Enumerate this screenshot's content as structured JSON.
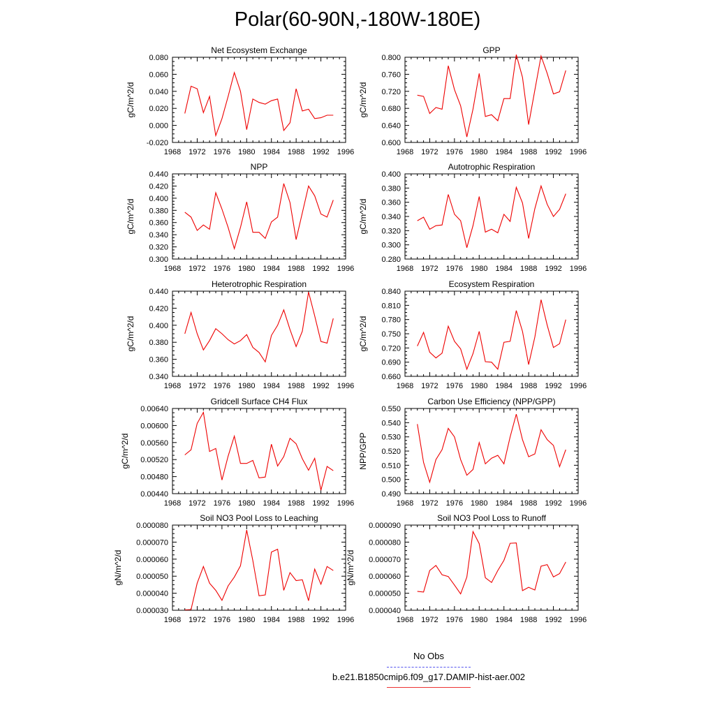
{
  "page": {
    "title": "Polar(60-90N,-180W-180E)"
  },
  "legend": {
    "items": [
      {
        "label": "No Obs",
        "color": "#5555ee",
        "style": "dashed"
      },
      {
        "label": "b.e21.B1850cmip6.f09_g17.DAMIP-hist-aer.002",
        "color": "#ee3333",
        "style": "solid"
      }
    ]
  },
  "chart_data": [
    {
      "type": "line",
      "title": "Net Ecosystem Exchange",
      "ylabel": "gC/m^2/d",
      "xlim": [
        1968,
        1996
      ],
      "ylim": [
        -0.02,
        0.08
      ],
      "xticks": [
        1968,
        1972,
        1976,
        1980,
        1984,
        1988,
        1992,
        1996
      ],
      "yticks": [
        -0.02,
        0.0,
        0.02,
        0.04,
        0.06,
        0.08
      ],
      "ydecimals": 3,
      "line_color": "#ee0000",
      "x": [
        1970,
        1971,
        1972,
        1973,
        1974,
        1975,
        1976,
        1977,
        1978,
        1979,
        1980,
        1981,
        1982,
        1983,
        1984,
        1985,
        1986,
        1987,
        1988,
        1989,
        1990,
        1991,
        1992,
        1993,
        1994
      ],
      "y": [
        0.014,
        0.046,
        0.043,
        0.015,
        0.034,
        -0.012,
        0.008,
        0.034,
        0.062,
        0.04,
        -0.005,
        0.031,
        0.027,
        0.025,
        0.029,
        0.031,
        -0.006,
        0.003,
        0.043,
        0.017,
        0.019,
        0.008,
        0.009,
        0.012,
        0.012
      ]
    },
    {
      "type": "line",
      "title": "GPP",
      "ylabel": "gC/m^2/d",
      "xlim": [
        1968,
        1996
      ],
      "ylim": [
        0.6,
        0.8
      ],
      "xticks": [
        1968,
        1972,
        1976,
        1980,
        1984,
        1988,
        1992,
        1996
      ],
      "yticks": [
        0.6,
        0.64,
        0.68,
        0.72,
        0.76,
        0.8
      ],
      "ydecimals": 3,
      "line_color": "#ee0000",
      "x": [
        1970,
        1971,
        1972,
        1973,
        1974,
        1975,
        1976,
        1977,
        1978,
        1979,
        1980,
        1981,
        1982,
        1983,
        1984,
        1985,
        1986,
        1987,
        1988,
        1989,
        1990,
        1991,
        1992,
        1993,
        1994
      ],
      "y": [
        0.711,
        0.708,
        0.668,
        0.682,
        0.678,
        0.78,
        0.724,
        0.686,
        0.613,
        0.678,
        0.762,
        0.661,
        0.665,
        0.651,
        0.703,
        0.703,
        0.806,
        0.753,
        0.642,
        0.723,
        0.803,
        0.762,
        0.714,
        0.719,
        0.769
      ]
    },
    {
      "type": "line",
      "title": "NPP",
      "ylabel": "gC/m^2/d",
      "xlim": [
        1968,
        1996
      ],
      "ylim": [
        0.3,
        0.44
      ],
      "xticks": [
        1968,
        1972,
        1976,
        1980,
        1984,
        1988,
        1992,
        1996
      ],
      "yticks": [
        0.3,
        0.32,
        0.34,
        0.36,
        0.38,
        0.4,
        0.42,
        0.44
      ],
      "ydecimals": 3,
      "line_color": "#ee0000",
      "x": [
        1970,
        1971,
        1972,
        1973,
        1974,
        1975,
        1976,
        1977,
        1978,
        1979,
        1980,
        1981,
        1982,
        1983,
        1984,
        1985,
        1986,
        1987,
        1988,
        1989,
        1990,
        1991,
        1992,
        1993,
        1994
      ],
      "y": [
        0.377,
        0.369,
        0.347,
        0.356,
        0.349,
        0.409,
        0.382,
        0.352,
        0.317,
        0.352,
        0.394,
        0.344,
        0.344,
        0.334,
        0.361,
        0.369,
        0.424,
        0.393,
        0.332,
        0.376,
        0.42,
        0.404,
        0.374,
        0.369,
        0.397
      ]
    },
    {
      "type": "line",
      "title": "Autotrophic Respiration",
      "ylabel": "gC/m^2/d",
      "xlim": [
        1968,
        1996
      ],
      "ylim": [
        0.28,
        0.4
      ],
      "xticks": [
        1968,
        1972,
        1976,
        1980,
        1984,
        1988,
        1992,
        1996
      ],
      "yticks": [
        0.28,
        0.3,
        0.32,
        0.34,
        0.36,
        0.38,
        0.4
      ],
      "ydecimals": 3,
      "line_color": "#ee0000",
      "x": [
        1970,
        1971,
        1972,
        1973,
        1974,
        1975,
        1976,
        1977,
        1978,
        1979,
        1980,
        1981,
        1982,
        1983,
        1984,
        1985,
        1986,
        1987,
        1988,
        1989,
        1990,
        1991,
        1992,
        1993,
        1994
      ],
      "y": [
        0.334,
        0.339,
        0.322,
        0.327,
        0.328,
        0.371,
        0.343,
        0.334,
        0.296,
        0.327,
        0.368,
        0.318,
        0.322,
        0.317,
        0.343,
        0.333,
        0.381,
        0.359,
        0.309,
        0.351,
        0.383,
        0.357,
        0.34,
        0.35,
        0.372
      ]
    },
    {
      "type": "line",
      "title": "Heterotrophic Respiration",
      "ylabel": "gC/m^2/d",
      "xlim": [
        1968,
        1996
      ],
      "ylim": [
        0.34,
        0.44
      ],
      "xticks": [
        1968,
        1972,
        1976,
        1980,
        1984,
        1988,
        1992,
        1996
      ],
      "yticks": [
        0.34,
        0.36,
        0.38,
        0.4,
        0.42,
        0.44
      ],
      "ydecimals": 3,
      "line_color": "#ee0000",
      "x": [
        1970,
        1971,
        1972,
        1973,
        1974,
        1975,
        1976,
        1977,
        1978,
        1979,
        1980,
        1981,
        1982,
        1983,
        1984,
        1985,
        1986,
        1987,
        1988,
        1989,
        1990,
        1991,
        1992,
        1993,
        1994
      ],
      "y": [
        0.39,
        0.415,
        0.39,
        0.371,
        0.382,
        0.396,
        0.39,
        0.383,
        0.378,
        0.382,
        0.389,
        0.374,
        0.368,
        0.357,
        0.388,
        0.4,
        0.418,
        0.395,
        0.375,
        0.393,
        0.439,
        0.411,
        0.381,
        0.379,
        0.408
      ]
    },
    {
      "type": "line",
      "title": "Ecosystem Respiration",
      "ylabel": "gC/m^2/d",
      "xlim": [
        1968,
        1996
      ],
      "ylim": [
        0.66,
        0.84
      ],
      "xticks": [
        1968,
        1972,
        1976,
        1980,
        1984,
        1988,
        1992,
        1996
      ],
      "yticks": [
        0.66,
        0.69,
        0.72,
        0.75,
        0.78,
        0.81,
        0.84
      ],
      "ydecimals": 3,
      "line_color": "#ee0000",
      "x": [
        1970,
        1971,
        1972,
        1973,
        1974,
        1975,
        1976,
        1977,
        1978,
        1979,
        1980,
        1981,
        1982,
        1983,
        1984,
        1985,
        1986,
        1987,
        1988,
        1989,
        1990,
        1991,
        1992,
        1993,
        1994
      ],
      "y": [
        0.724,
        0.753,
        0.711,
        0.699,
        0.709,
        0.766,
        0.734,
        0.718,
        0.675,
        0.708,
        0.755,
        0.691,
        0.69,
        0.675,
        0.732,
        0.734,
        0.799,
        0.755,
        0.685,
        0.743,
        0.822,
        0.768,
        0.721,
        0.729,
        0.78
      ]
    },
    {
      "type": "line",
      "title": "Gridcell Surface CH4 Flux",
      "ylabel": "gC/m^2/d",
      "xlim": [
        1968,
        1996
      ],
      "ylim": [
        0.0044,
        0.0064
      ],
      "xticks": [
        1968,
        1972,
        1976,
        1980,
        1984,
        1988,
        1992,
        1996
      ],
      "yticks": [
        0.0044,
        0.0048,
        0.0052,
        0.0056,
        0.006,
        0.0064
      ],
      "ydecimals": 5,
      "line_color": "#ee0000",
      "x": [
        1970,
        1971,
        1972,
        1973,
        1974,
        1975,
        1976,
        1977,
        1978,
        1979,
        1980,
        1981,
        1982,
        1983,
        1984,
        1985,
        1986,
        1987,
        1988,
        1989,
        1990,
        1991,
        1992,
        1993,
        1994
      ],
      "y": [
        0.00531,
        0.00543,
        0.00605,
        0.00631,
        0.00539,
        0.00546,
        0.00472,
        0.00528,
        0.00575,
        0.00511,
        0.00511,
        0.00518,
        0.00477,
        0.00479,
        0.00556,
        0.00505,
        0.00527,
        0.0057,
        0.00557,
        0.00522,
        0.00495,
        0.00523,
        0.00448,
        0.00504,
        0.00494
      ]
    },
    {
      "type": "line",
      "title": "Carbon Use Efficiency (NPP/GPP)",
      "ylabel": "NPP/GPP",
      "xlim": [
        1968,
        1996
      ],
      "ylim": [
        0.49,
        0.55
      ],
      "xticks": [
        1968,
        1972,
        1976,
        1980,
        1984,
        1988,
        1992,
        1996
      ],
      "yticks": [
        0.49,
        0.5,
        0.51,
        0.52,
        0.53,
        0.54,
        0.55
      ],
      "ydecimals": 3,
      "line_color": "#ee0000",
      "x": [
        1970,
        1971,
        1972,
        1973,
        1974,
        1975,
        1976,
        1977,
        1978,
        1979,
        1980,
        1981,
        1982,
        1983,
        1984,
        1985,
        1986,
        1987,
        1988,
        1989,
        1990,
        1991,
        1992,
        1993,
        1994
      ],
      "y": [
        0.539,
        0.512,
        0.498,
        0.514,
        0.521,
        0.536,
        0.53,
        0.514,
        0.503,
        0.507,
        0.526,
        0.511,
        0.515,
        0.517,
        0.511,
        0.53,
        0.546,
        0.528,
        0.516,
        0.518,
        0.535,
        0.528,
        0.524,
        0.509,
        0.521
      ]
    },
    {
      "type": "line",
      "title": "Soil NO3 Pool Loss to Leaching",
      "ylabel": "gN/m^2/d",
      "xlim": [
        1968,
        1996
      ],
      "ylim": [
        3e-05,
        8e-05
      ],
      "xticks": [
        1968,
        1972,
        1976,
        1980,
        1984,
        1988,
        1992,
        1996
      ],
      "yticks": [
        3e-05,
        4e-05,
        5e-05,
        6e-05,
        7e-05,
        8e-05
      ],
      "ydecimals": 6,
      "line_color": "#ee0000",
      "x": [
        1970,
        1971,
        1972,
        1973,
        1974,
        1975,
        1976,
        1977,
        1978,
        1979,
        1980,
        1981,
        1982,
        1983,
        1984,
        1985,
        1986,
        1987,
        1988,
        1989,
        1990,
        1991,
        1992,
        1993,
        1994
      ],
      "y": [
        3.02e-05,
        3.04e-05,
        4.59e-05,
        5.57e-05,
        4.59e-05,
        4.17e-05,
        3.58e-05,
        4.43e-05,
        4.95e-05,
        5.61e-05,
        7.71e-05,
        5.92e-05,
        3.85e-05,
        3.9e-05,
        6.42e-05,
        6.58e-05,
        4.17e-05,
        5.21e-05,
        4.74e-05,
        4.79e-05,
        3.56e-05,
        5.42e-05,
        4.53e-05,
        5.57e-05,
        5.33e-05
      ]
    },
    {
      "type": "line",
      "title": "Soil NO3 Pool Loss to Runoff",
      "ylabel": "gN/m^2/d",
      "xlim": [
        1968,
        1996
      ],
      "ylim": [
        4e-05,
        9e-05
      ],
      "xticks": [
        1968,
        1972,
        1976,
        1980,
        1984,
        1988,
        1992,
        1996
      ],
      "yticks": [
        4e-05,
        5e-05,
        6e-05,
        7e-05,
        8e-05,
        9e-05
      ],
      "ydecimals": 6,
      "line_color": "#ee0000",
      "x": [
        1970,
        1971,
        1972,
        1973,
        1974,
        1975,
        1976,
        1977,
        1978,
        1979,
        1980,
        1981,
        1982,
        1983,
        1984,
        1985,
        1986,
        1987,
        1988,
        1989,
        1990,
        1991,
        1992,
        1993,
        1994
      ],
      "y": [
        5.11e-05,
        5.07e-05,
        6.33e-05,
        6.63e-05,
        6.08e-05,
        5.98e-05,
        5.48e-05,
        4.96e-05,
        5.95e-05,
        8.62e-05,
        7.91e-05,
        5.91e-05,
        5.63e-05,
        6.33e-05,
        6.93e-05,
        7.93e-05,
        7.95e-05,
        5.15e-05,
        5.35e-05,
        5.19e-05,
        6.59e-05,
        6.68e-05,
        5.96e-05,
        6.15e-05,
        6.83e-05
      ]
    }
  ]
}
